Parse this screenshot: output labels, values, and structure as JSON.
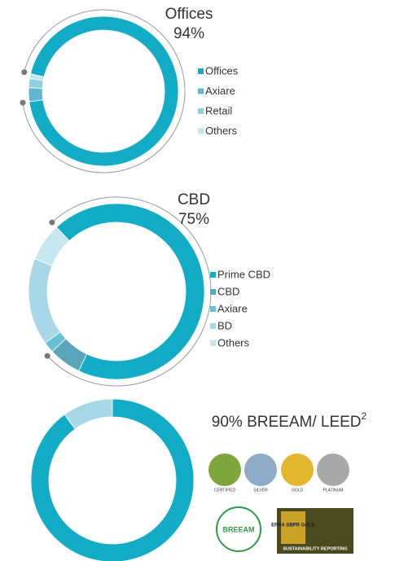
{
  "chart_data": [
    {
      "type": "pie",
      "title": "Offices",
      "subtitle": "94%",
      "categories": [
        "Offices",
        "Axiare",
        "Retail",
        "Others"
      ],
      "values": [
        94,
        3,
        2,
        1
      ],
      "colors": [
        "#12acc7",
        "#5fb6cf",
        "#8fcfe0",
        "#c3e5ef"
      ],
      "legend": "right"
    },
    {
      "type": "pie",
      "title": "CBD",
      "subtitle": "75%",
      "categories": [
        "Prime CBD",
        "CBD",
        "Axiare",
        "BD",
        "Others"
      ],
      "values": [
        69,
        6,
        2,
        16,
        7
      ],
      "colors": [
        "#12acc7",
        "#5aa5b9",
        "#66c0d8",
        "#a8d8e7",
        "#c6e6f0"
      ],
      "legend": "right"
    },
    {
      "type": "pie",
      "title": "90% BREEAM/ LEED",
      "title_superscript": "2",
      "categories": [
        null,
        null
      ],
      "values": [
        90,
        10
      ],
      "colors": [
        "#12acc7",
        "#a8d8e7"
      ]
    }
  ],
  "logos": {
    "leed": [
      "CERTIFIED",
      "SILVER",
      "GOLD",
      "PLATINUM"
    ],
    "breeam": "BREEAM",
    "epra": "EPRA SBPR GOLD",
    "epra_caption": "SUSTAINABILITY REPORTING"
  }
}
